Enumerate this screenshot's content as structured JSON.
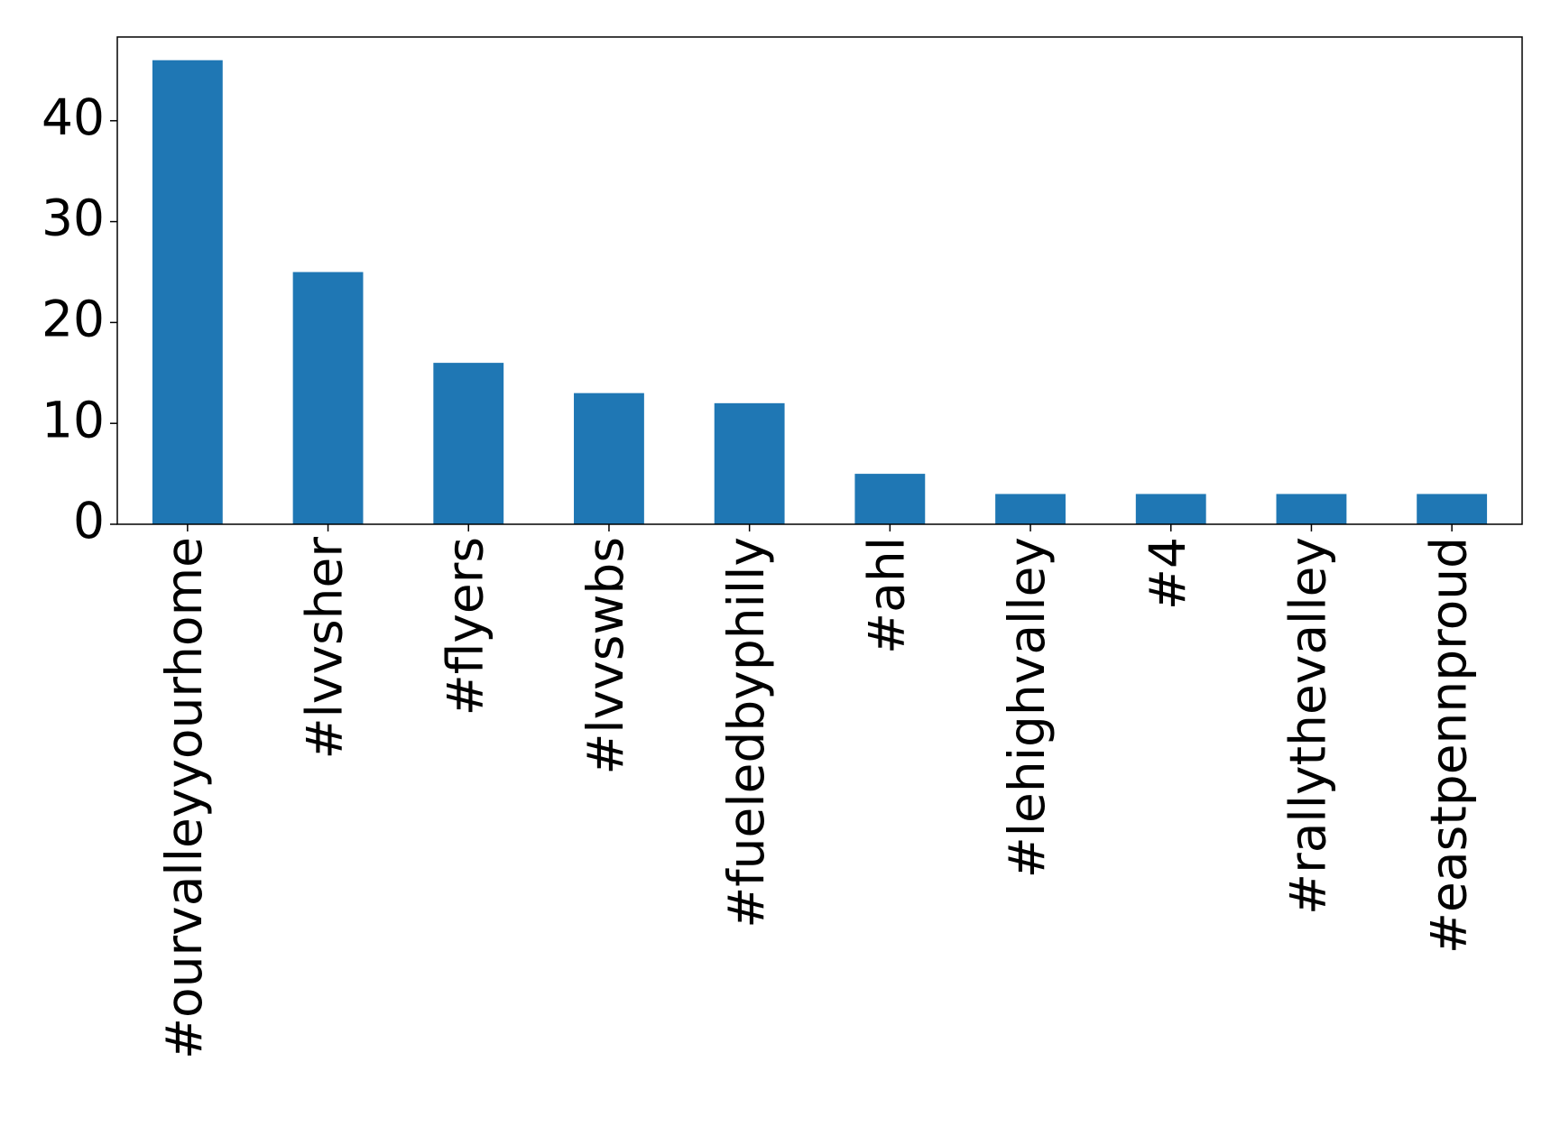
{
  "chart_data": {
    "type": "bar",
    "categories": [
      "#ourvalleyyourhome",
      "#lvvsher",
      "#flyers",
      "#lvvswbs",
      "#fueledbyphilly",
      "#ahl",
      "#lehighvalley",
      "#4",
      "#rallythevalley",
      "#eastpennproud"
    ],
    "values": [
      46,
      25,
      16,
      13,
      12,
      5,
      3,
      3,
      3,
      3
    ],
    "color": "#1f77b4",
    "ylim": [
      0,
      48.3
    ],
    "yticks": [
      0,
      10,
      20,
      30,
      40
    ],
    "grid": false
  }
}
